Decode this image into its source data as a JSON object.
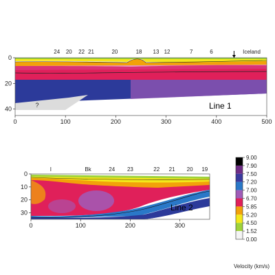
{
  "chart_data": [
    {
      "type": "heatmap",
      "panel_label": "Line 1",
      "x_ticks": [
        0,
        100,
        200,
        300,
        400,
        500
      ],
      "y_ticks": [
        0,
        20,
        40
      ],
      "xlim": [
        0,
        500
      ],
      "ylim": [
        0,
        45
      ],
      "top_labels": [
        {
          "text": "24",
          "x": 83
        },
        {
          "text": "20",
          "x": 107
        },
        {
          "text": "22",
          "x": 132
        },
        {
          "text": "21",
          "x": 151
        },
        {
          "text": "20",
          "x": 198
        },
        {
          "text": "18",
          "x": 246
        },
        {
          "text": "13",
          "x": 280
        },
        {
          "text": "12",
          "x": 302
        },
        {
          "text": "7",
          "x": 350
        },
        {
          "text": "6",
          "x": 390
        },
        {
          "text": "Iceland",
          "x": 470
        }
      ],
      "unknown_label": "?",
      "arrow_x": 435
    },
    {
      "type": "heatmap",
      "panel_label": "Line 2",
      "x_ticks": [
        0,
        100,
        200,
        300
      ],
      "y_ticks": [
        0,
        10,
        20,
        30
      ],
      "xlim": [
        0,
        360
      ],
      "ylim": [
        0,
        35
      ],
      "top_labels": [
        {
          "text": "I",
          "x": 40
        },
        {
          "text": "Bk",
          "x": 115
        },
        {
          "text": "24",
          "x": 163
        },
        {
          "text": "23",
          "x": 200
        },
        {
          "text": "22",
          "x": 253
        },
        {
          "text": "21",
          "x": 284
        },
        {
          "text": "20",
          "x": 320
        },
        {
          "text": "19",
          "x": 350
        }
      ]
    }
  ],
  "colorbar": {
    "title": "Velocity (km/s)",
    "levels": [
      "9.00",
      "7.90",
      "7.50",
      "7.20",
      "7.00",
      "6.70",
      "5.85",
      "5.20",
      "4.50",
      "1.52",
      "0.00"
    ],
    "colors": [
      "#000000",
      "#6f2d86",
      "#3a3a9e",
      "#2a78c8",
      "#a05cb8",
      "#e0205a",
      "#f2a20a",
      "#f4e81a",
      "#9fd23a",
      "#f4f4f4"
    ]
  }
}
